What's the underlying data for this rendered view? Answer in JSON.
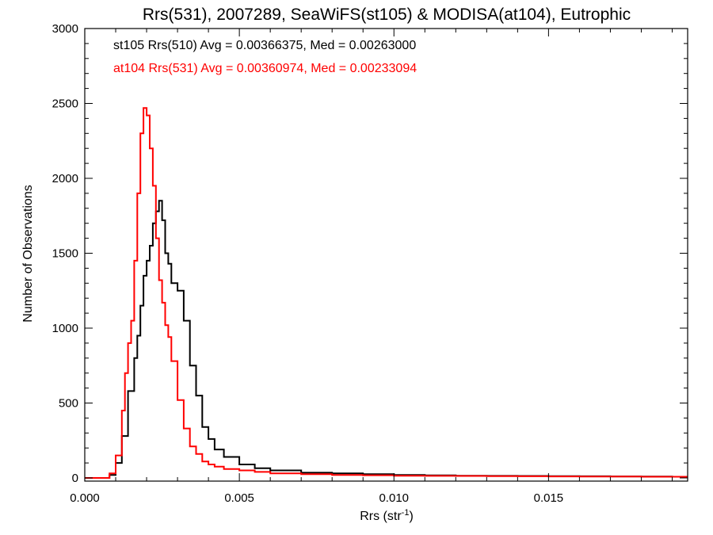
{
  "chart_data": {
    "type": "line",
    "title": "Rrs(531), 2007289, SeaWiFS(st105) & MODISA(at104), Eutrophic",
    "xlabel": "Rrs (str",
    "xlabel_sup": "-1",
    "xlabel_close": ")",
    "ylabel": "Number of Observations",
    "xlim": [
      0.0,
      0.0195
    ],
    "ylim": [
      0,
      3000
    ],
    "xticks": [
      0.0,
      0.005,
      0.01,
      0.015
    ],
    "xtick_labels": [
      "0.000",
      "0.005",
      "0.010",
      "0.015"
    ],
    "yticks": [
      0,
      500,
      1000,
      1500,
      2000,
      2500,
      3000
    ],
    "ytick_labels": [
      "0",
      "500",
      "1000",
      "1500",
      "2000",
      "2500",
      "3000"
    ],
    "grid": false,
    "legend_placement": "top-left",
    "series": [
      {
        "label": "st105 Rrs(510) Avg = 0.00366375, Med = 0.00263000",
        "color": "#000000",
        "x": [
          0.0,
          0.0005,
          0.0008,
          0.001,
          0.0012,
          0.0014,
          0.0016,
          0.0017,
          0.0018,
          0.0019,
          0.002,
          0.0021,
          0.0022,
          0.0023,
          0.0024,
          0.0025,
          0.0026,
          0.0027,
          0.0028,
          0.003,
          0.0032,
          0.0034,
          0.0036,
          0.0038,
          0.004,
          0.0042,
          0.0045,
          0.005,
          0.0055,
          0.006,
          0.007,
          0.008,
          0.009,
          0.01,
          0.011,
          0.012,
          0.013,
          0.014,
          0.015,
          0.016,
          0.017,
          0.018,
          0.019,
          0.0195
        ],
        "y": [
          0,
          0,
          20,
          100,
          280,
          580,
          800,
          950,
          1150,
          1350,
          1450,
          1550,
          1700,
          1780,
          1850,
          1720,
          1500,
          1430,
          1300,
          1250,
          1050,
          750,
          550,
          340,
          260,
          190,
          140,
          90,
          65,
          50,
          35,
          30,
          25,
          20,
          17,
          15,
          14,
          13,
          12,
          11,
          10,
          9,
          8,
          8
        ]
      },
      {
        "label": "at104 Rrs(531) Avg = 0.00360974, Med = 0.00233094",
        "color": "#ff0000",
        "x": [
          0.0,
          0.0005,
          0.0008,
          0.001,
          0.0012,
          0.0013,
          0.0014,
          0.0015,
          0.0016,
          0.0017,
          0.0018,
          0.0019,
          0.002,
          0.0021,
          0.0022,
          0.0023,
          0.0024,
          0.0025,
          0.0026,
          0.0027,
          0.0028,
          0.003,
          0.0032,
          0.0034,
          0.0036,
          0.0038,
          0.004,
          0.0042,
          0.0045,
          0.005,
          0.0055,
          0.006,
          0.007,
          0.008,
          0.009,
          0.01,
          0.011,
          0.012,
          0.013,
          0.014,
          0.015,
          0.016,
          0.017,
          0.018,
          0.019,
          0.0195
        ],
        "y": [
          0,
          0,
          30,
          150,
          450,
          700,
          900,
          1050,
          1450,
          1900,
          2300,
          2470,
          2420,
          2200,
          1950,
          1600,
          1320,
          1170,
          1020,
          940,
          780,
          520,
          330,
          210,
          160,
          110,
          90,
          75,
          60,
          50,
          40,
          30,
          25,
          20,
          18,
          15,
          14,
          13,
          12,
          11,
          10,
          9,
          9,
          8,
          8,
          8
        ]
      }
    ]
  }
}
